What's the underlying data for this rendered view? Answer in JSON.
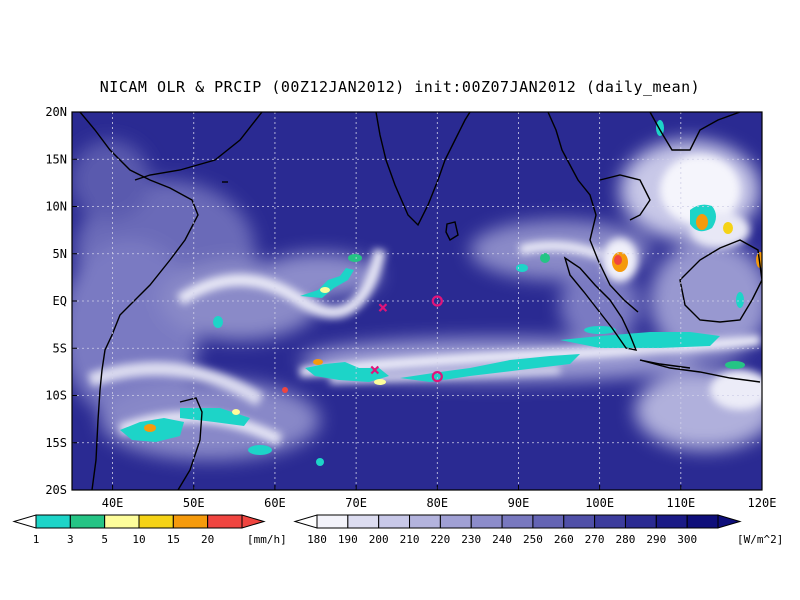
{
  "title": "NICAM OLR & PRCIP (00Z12JAN2012) init:00Z07JAN2012 (daily_mean)",
  "map": {
    "lon_range": [
      35,
      120
    ],
    "lat_range": [
      -20,
      20
    ],
    "lon_ticks": [
      "40E",
      "50E",
      "60E",
      "70E",
      "80E",
      "90E",
      "100E",
      "110E",
      "120E"
    ],
    "lon_tick_values": [
      40,
      50,
      60,
      70,
      80,
      90,
      100,
      110,
      120
    ],
    "lat_ticks": [
      "20N",
      "15N",
      "10N",
      "5N",
      "EQ",
      "5S",
      "10S",
      "15S",
      "20S"
    ],
    "lat_tick_values": [
      20,
      15,
      10,
      5,
      0,
      -5,
      -10,
      -15,
      -20
    ],
    "grid": true,
    "markers": [
      {
        "type": "cross",
        "lon": 73.3,
        "lat": -0.7,
        "color": "#e0147a"
      },
      {
        "type": "cross",
        "lon": 72.3,
        "lat": -7.3,
        "color": "#e0147a"
      },
      {
        "type": "circle",
        "lon": 80.0,
        "lat": 0.0,
        "color": "#e0147a"
      },
      {
        "type": "circle",
        "lon": 80.0,
        "lat": -8.0,
        "color": "#e0147a"
      }
    ]
  },
  "precip_colorbar": {
    "labels": [
      "1",
      "3",
      "5",
      "10",
      "15",
      "20"
    ],
    "unit": "[mm/h]",
    "colors": [
      "#1dd4c8",
      "#25c485",
      "#fdfd9b",
      "#f5d317",
      "#f59a0c",
      "#f04540"
    ]
  },
  "olr_colorbar": {
    "labels": [
      "180",
      "190",
      "200",
      "210",
      "220",
      "230",
      "240",
      "250",
      "260",
      "270",
      "280",
      "290",
      "300"
    ],
    "unit": "[W/m^2]",
    "colors": [
      "#f3f3fa",
      "#dcdcf0",
      "#c8c8e8",
      "#b3b3dd",
      "#a0a0d4",
      "#8c8cca",
      "#7878bf",
      "#6464b4",
      "#5050a8",
      "#3c3c9d",
      "#2a2a92",
      "#1a1a86",
      "#0e0e7a"
    ]
  }
}
